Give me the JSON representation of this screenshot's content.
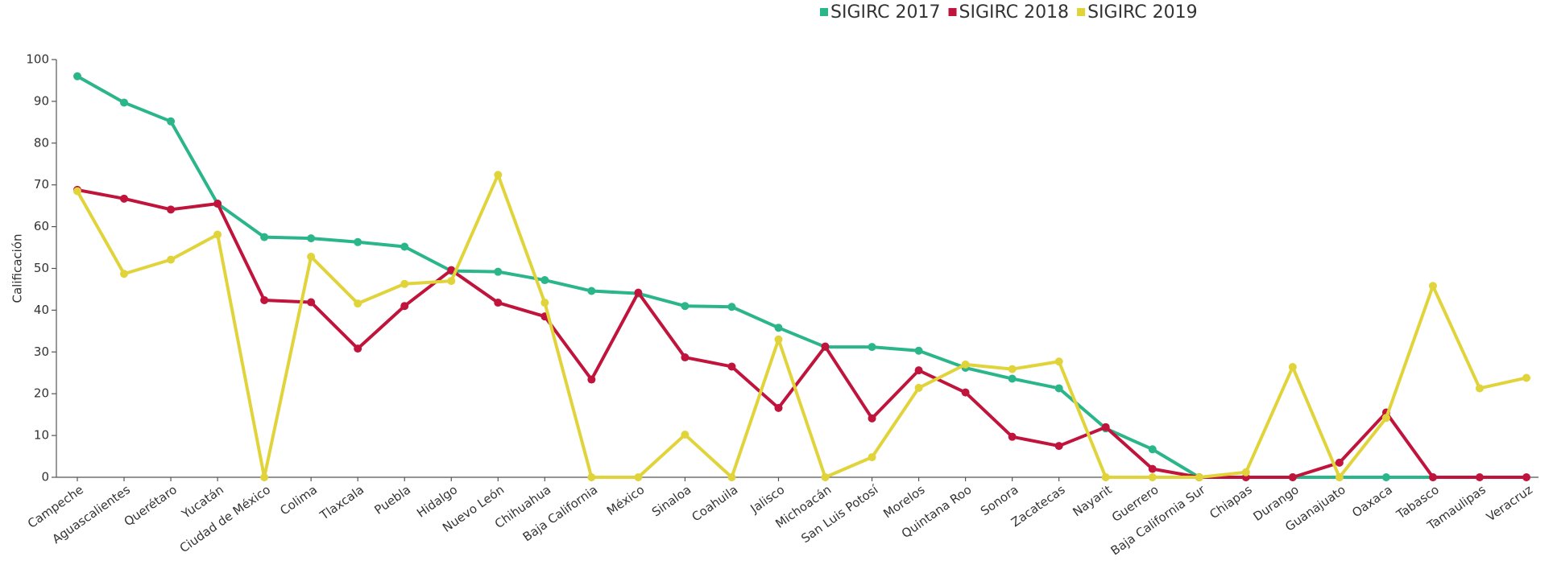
{
  "chart_data": {
    "type": "line",
    "y_label": "Calificación",
    "categories": [
      "Campeche",
      "Aguascalientes",
      "Querétaro",
      "Yucatán",
      "Ciudad de México",
      "Colima",
      "Tlaxcala",
      "Puebla",
      "Hidalgo",
      "Nuevo León",
      "Chihuahua",
      "Baja California",
      "México",
      "Sinaloa",
      "Coahuila",
      "Jalisco",
      "Michoacán",
      "San Luis Potosí",
      "Morelos",
      "Quintana Roo",
      "Sonora",
      "Zacatecas",
      "Nayarit",
      "Guerrero",
      "Baja California Sur",
      "Chiapas",
      "Durango",
      "Guanajuato",
      "Oaxaca",
      "Tabasco",
      "Tamaulipas",
      "Veracruz"
    ],
    "series": [
      {
        "name": "SIGIRC 2017",
        "color": "#2bb58a",
        "values": [
          96,
          89.7,
          85.2,
          65.5,
          57.5,
          57.2,
          56.3,
          55.2,
          49.4,
          49.2,
          47.2,
          44.6,
          44,
          41,
          40.8,
          35.8,
          31.2,
          31.2,
          30.3,
          26.2,
          23.6,
          21.3,
          11.7,
          6.7,
          0,
          0,
          0,
          0,
          0,
          0,
          null,
          null
        ]
      },
      {
        "name": "SIGIRC 2018",
        "color": "#c0143c",
        "values": [
          68.8,
          66.7,
          64.1,
          65.5,
          42.4,
          41.9,
          30.8,
          41,
          49.6,
          41.8,
          38.5,
          23.4,
          44.2,
          28.7,
          26.5,
          16.6,
          31.3,
          14.1,
          25.6,
          20.3,
          9.7,
          7.5,
          12,
          2,
          0,
          0,
          0,
          3.5,
          15.5,
          0,
          0,
          0
        ]
      },
      {
        "name": "SIGIRC 2019",
        "color": "#e0d43a",
        "values": [
          68.5,
          48.7,
          52.1,
          58.1,
          0,
          52.8,
          41.6,
          46.3,
          47,
          72.4,
          41.8,
          0,
          0,
          10.2,
          0,
          33,
          0,
          4.8,
          21.4,
          27,
          25.9,
          27.7,
          0,
          0,
          0,
          1.2,
          26.4,
          0,
          14.2,
          45.8,
          21.3,
          23.8
        ]
      }
    ],
    "ylim": [
      0,
      100
    ],
    "yticks": [
      0,
      10,
      20,
      30,
      40,
      50,
      60,
      70,
      80,
      90,
      100
    ],
    "grid": false,
    "legend": "top"
  }
}
